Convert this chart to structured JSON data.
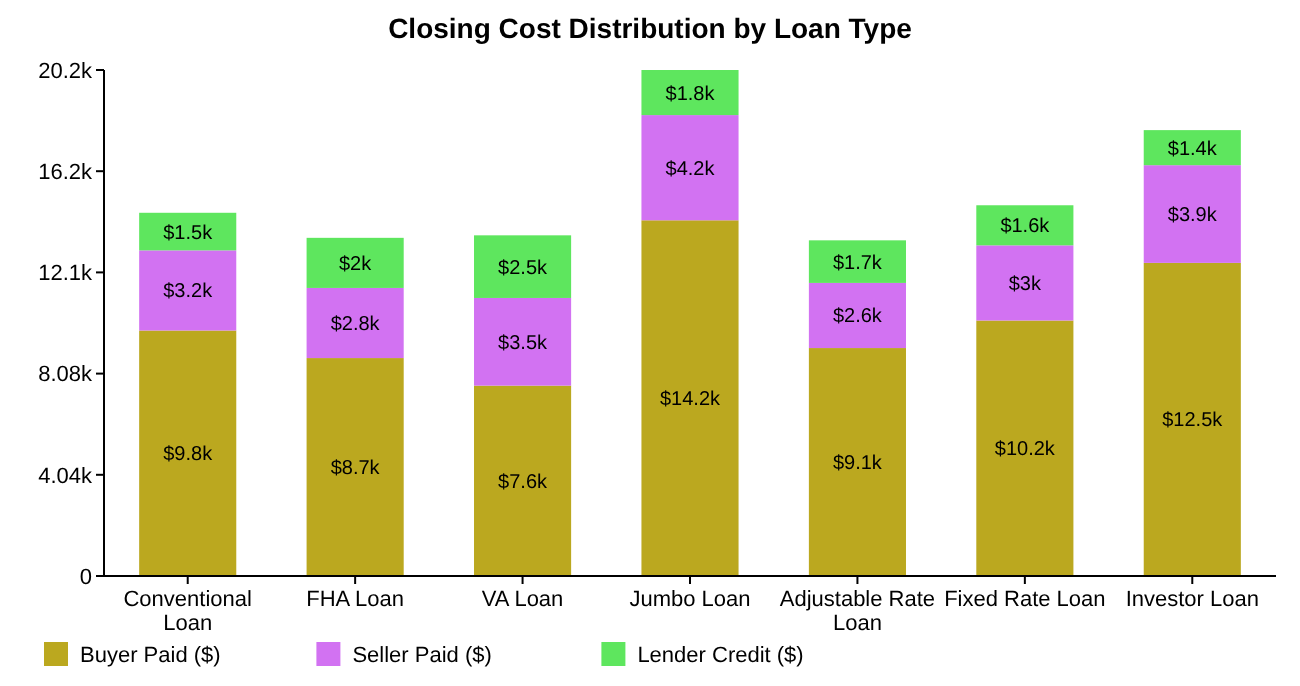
{
  "chart_data": {
    "type": "bar",
    "title": "Closing Cost Distribution by Loan Type",
    "stacked": true,
    "legend": "bottom left",
    "grid": false,
    "categories": [
      "Conventional Loan",
      "FHA Loan",
      "VA Loan",
      "Jumbo Loan",
      "Adjustable Rate Loan",
      "Fixed Rate Loan",
      "Investor Loan"
    ],
    "ylim": [
      0,
      20200
    ],
    "yticks": [
      0,
      {
        "value": 4040,
        "label": "4.04k"
      },
      {
        "value": 8080,
        "label": "8.08k"
      },
      {
        "value": 12120,
        "label": "12.1k"
      },
      {
        "value": 16160,
        "label": "16.2k"
      },
      {
        "value": 20200,
        "label": "20.2k"
      }
    ],
    "series": [
      {
        "name": "Buyer Paid ($)",
        "color": "#bba81f",
        "values": [
          9800,
          8700,
          7600,
          14200,
          9100,
          10200,
          12500
        ],
        "value_labels": [
          "$9.8k",
          "$8.7k",
          "$7.6k",
          "$14.2k",
          "$9.1k",
          "$10.2k",
          "$12.5k"
        ]
      },
      {
        "name": "Seller Paid ($)",
        "color": "#d272f2",
        "values": [
          3200,
          2800,
          3500,
          4200,
          2600,
          3000,
          3900
        ],
        "value_labels": [
          "$3.2k",
          "$2.8k",
          "$3.5k",
          "$4.2k",
          "$2.6k",
          "$3k",
          "$3.9k"
        ]
      },
      {
        "name": "Lender Credit ($)",
        "color": "#5ee65e",
        "values": [
          1500,
          2000,
          2500,
          1800,
          1700,
          1600,
          1400
        ],
        "value_labels": [
          "$1.5k",
          "$2k",
          "$2.5k",
          "$1.8k",
          "$1.7k",
          "$1.6k",
          "$1.4k"
        ]
      }
    ]
  }
}
